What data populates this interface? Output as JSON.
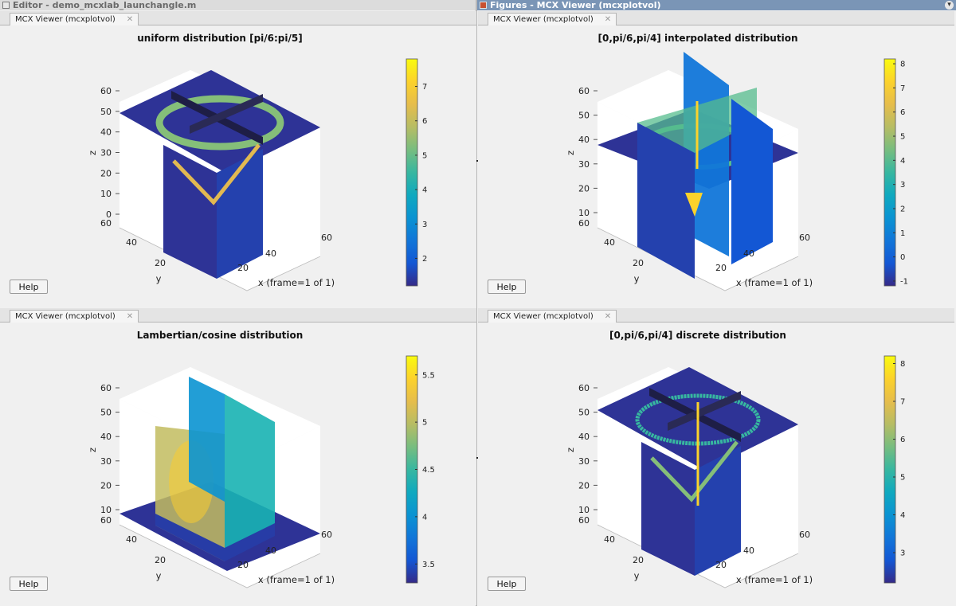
{
  "editor_title": "Editor - demo_mcxlab_launchangle.m",
  "figures_title": "Figures - MCX Viewer (mcxplotvol)",
  "help_label": "Help",
  "panels": [
    {
      "tab": "MCX Viewer (mcxplotvol)",
      "chart_data": {
        "type": "heatmap",
        "title": "uniform distribution [pi/6:pi/5]",
        "xlabel": "x (frame=1 of 1)",
        "ylabel": "y",
        "zlabel": "z",
        "x_ticks": [
          "20",
          "40",
          "60"
        ],
        "y_ticks": [
          "20",
          "40",
          "60"
        ],
        "z_ticks": [
          "0",
          "10",
          "20",
          "30",
          "40",
          "50",
          "60"
        ],
        "colorbar_ticks": [
          "2",
          "3",
          "4",
          "5",
          "6",
          "7"
        ],
        "colorbar_range": [
          1.2,
          7.8
        ],
        "colormap": "parula"
      }
    },
    {
      "tab": "MCX Viewer (mcxplotvol)",
      "chart_data": {
        "type": "heatmap",
        "title": "[0,pi/6,pi/4] interpolated distribution",
        "xlabel": "x (frame=1 of 1)",
        "ylabel": "y",
        "zlabel": "z",
        "x_ticks": [
          "20",
          "40",
          "60"
        ],
        "y_ticks": [
          "20",
          "40",
          "60"
        ],
        "z_ticks": [
          "10",
          "20",
          "30",
          "40",
          "50",
          "60"
        ],
        "colorbar_ticks": [
          "-1",
          "0",
          "1",
          "2",
          "3",
          "4",
          "5",
          "6",
          "7",
          "8"
        ],
        "colorbar_range": [
          -1.2,
          8.2
        ],
        "colormap": "parula"
      }
    },
    {
      "tab": "MCX Viewer (mcxplotvol)",
      "chart_data": {
        "type": "heatmap",
        "title": "Lambertian/cosine distribution",
        "xlabel": "x (frame=1 of 1)",
        "ylabel": "y",
        "zlabel": "z",
        "x_ticks": [
          "20",
          "40",
          "60"
        ],
        "y_ticks": [
          "20",
          "40",
          "60"
        ],
        "z_ticks": [
          "10",
          "20",
          "30",
          "40",
          "50",
          "60"
        ],
        "colorbar_ticks": [
          "3.5",
          "4",
          "4.5",
          "5",
          "5.5"
        ],
        "colorbar_range": [
          3.3,
          5.7
        ],
        "colormap": "parula"
      }
    },
    {
      "tab": "MCX Viewer (mcxplotvol)",
      "chart_data": {
        "type": "heatmap",
        "title": "[0,pi/6,pi/4] discrete distribution",
        "xlabel": "x (frame=1 of 1)",
        "ylabel": "y",
        "zlabel": "z",
        "x_ticks": [
          "20",
          "40",
          "60"
        ],
        "y_ticks": [
          "20",
          "40",
          "60"
        ],
        "z_ticks": [
          "10",
          "20",
          "30",
          "40",
          "50",
          "60"
        ],
        "colorbar_ticks": [
          "3",
          "4",
          "5",
          "6",
          "7",
          "8"
        ],
        "colorbar_range": [
          2.2,
          8.2
        ],
        "colormap": "parula"
      }
    }
  ]
}
